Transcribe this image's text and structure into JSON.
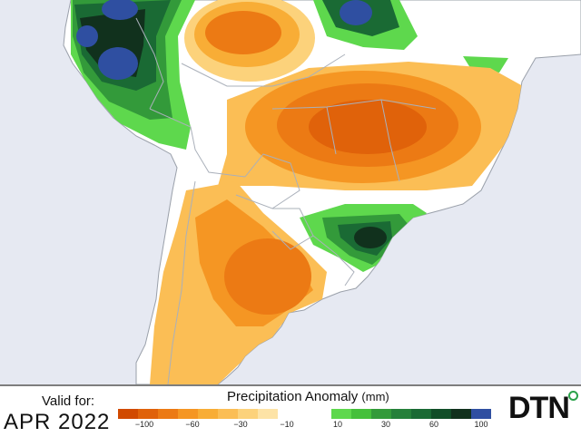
{
  "valid_label": "Valid for:",
  "valid_date": "APR 2022",
  "legend": {
    "title": "Precipitation Anomaly",
    "unit": "(mm)",
    "negative_colors": [
      "#d14a00",
      "#e0620a",
      "#ec7a14",
      "#f59623",
      "#f8ad36",
      "#fbbe55",
      "#fcd27b",
      "#fde3a6"
    ],
    "positive_colors": [
      "#5ed84d",
      "#45c03b",
      "#339a3a",
      "#25803a",
      "#1a6a34",
      "#114e28",
      "#11311d",
      "#2f4fa1"
    ],
    "negative_ticks": [
      "−100",
      "−60",
      "−30",
      "−10"
    ],
    "positive_ticks": [
      "10",
      "30",
      "60",
      "100"
    ]
  },
  "logo": "DTN",
  "palette": {
    "ocean": "#e6e9f2",
    "land": "#ffffff",
    "border": "#aab0ba",
    "coast": "#9aa0aa"
  }
}
